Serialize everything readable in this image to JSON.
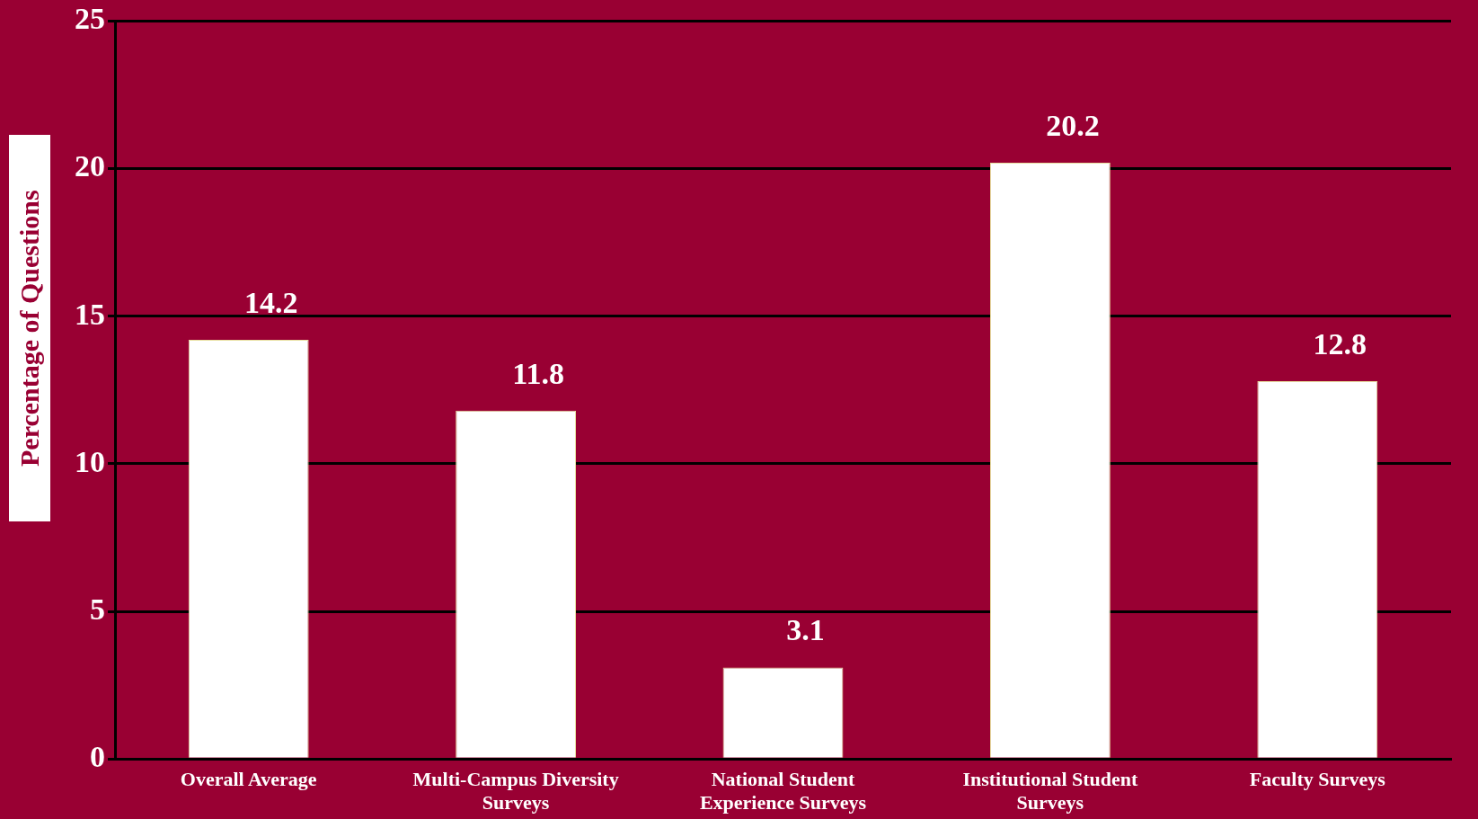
{
  "chart_data": {
    "type": "bar",
    "ylabel": "Percentage of Questions",
    "categories": [
      "Overall Average",
      "Multi-Campus Diversity Surveys",
      "National Student Experience Surveys",
      "Institutional Student Surveys",
      "Faculty Surveys"
    ],
    "values": [
      14.2,
      11.8,
      3.1,
      20.2,
      12.8
    ],
    "color": "#ffffff",
    "ylim": [
      0,
      25
    ],
    "yticks": [
      0,
      5,
      10,
      15,
      20,
      25
    ],
    "grid": "y",
    "data_labels": true,
    "legend": false
  }
}
